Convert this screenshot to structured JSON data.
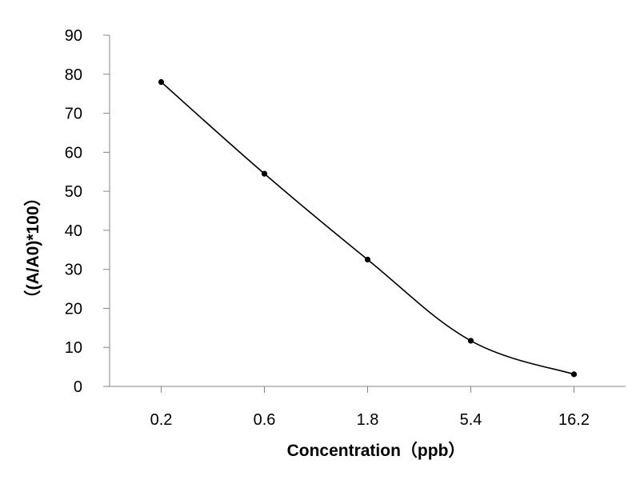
{
  "chart_data": {
    "type": "line",
    "categories": [
      "0.2",
      "0.6",
      "1.8",
      "5.4",
      "16.2"
    ],
    "series": [
      {
        "values": [
          78,
          54.5,
          32.5,
          11.7,
          3.1
        ]
      }
    ],
    "xlabel": "Concentration（ppb）",
    "ylabel": "（(A/A0)*100）",
    "ylim": [
      0,
      90
    ],
    "yticks": [
      0,
      10,
      20,
      30,
      40,
      50,
      60,
      70,
      80,
      90
    ],
    "grid": false,
    "legend": false,
    "line_color": "#000000",
    "marker_color": "#000000",
    "smooth": true
  }
}
